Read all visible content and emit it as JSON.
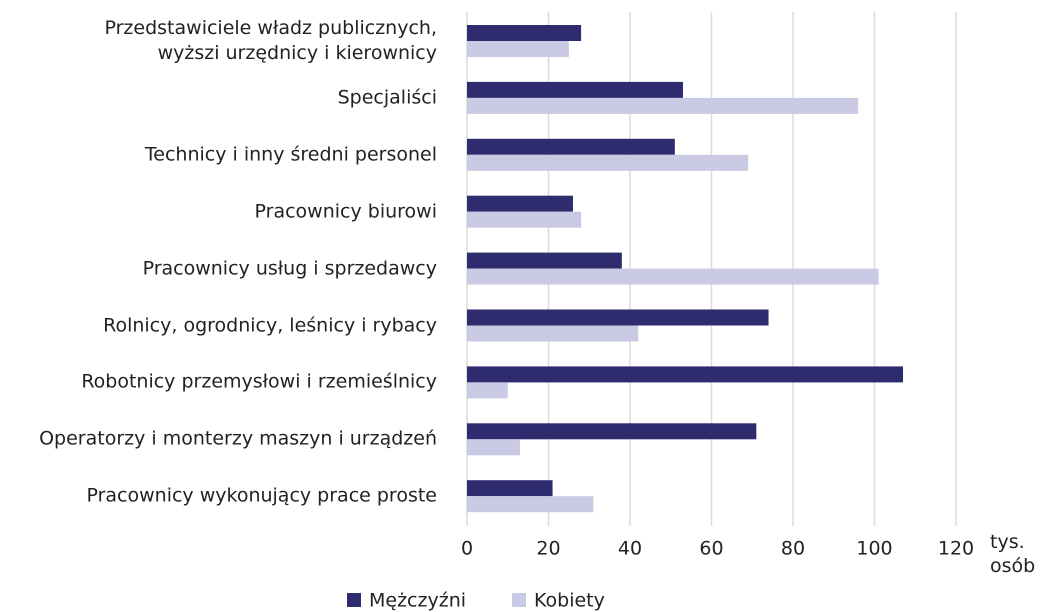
{
  "chart_data": {
    "type": "bar",
    "orientation": "horizontal",
    "categories": [
      "Przedstawiciele władz publicznych,\nwyższi urzędnicy i kierownicy",
      "Specjaliści",
      "Technicy i inny średni personel",
      "Pracownicy biurowi",
      "Pracownicy usług i sprzedawcy",
      "Rolnicy, ogrodnicy, leśnicy i rybacy",
      "Robotnicy przemysłowi i rzemieślnicy",
      "Operatorzy i monterzy maszyn i urządzeń",
      "Pracownicy wykonujący prace proste"
    ],
    "series": [
      {
        "name": "Mężczyźni",
        "color": "#2e2b6f",
        "values": [
          28,
          53,
          51,
          26,
          38,
          74,
          107,
          71,
          21
        ]
      },
      {
        "name": "Kobiety",
        "color": "#cbcae4",
        "values": [
          25,
          96,
          69,
          28,
          101,
          42,
          10,
          13,
          31
        ]
      }
    ],
    "x_label": "tys. osób",
    "xlim": [
      0,
      120
    ],
    "xticks": [
      0,
      20,
      40,
      60,
      80,
      100,
      120
    ],
    "grid": true
  }
}
